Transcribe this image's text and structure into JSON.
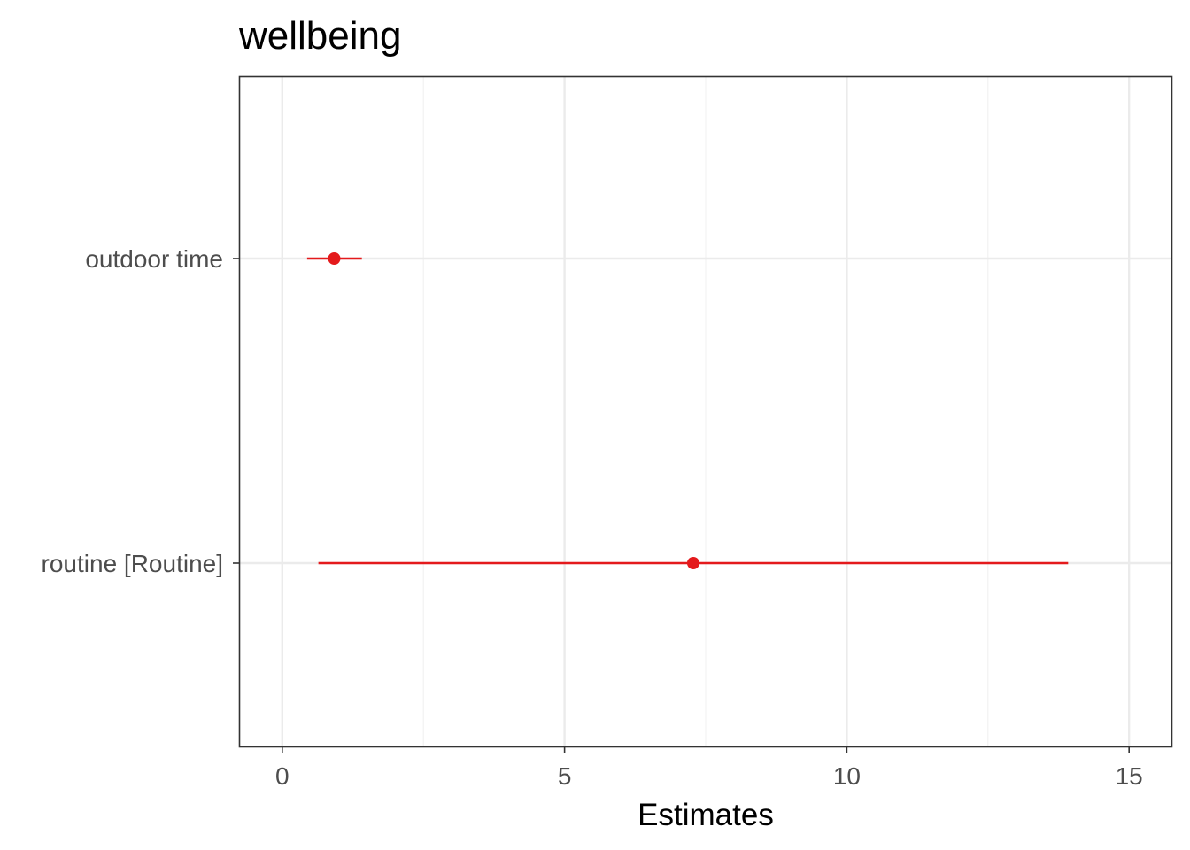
{
  "chart_data": {
    "type": "forest",
    "title": "wellbeing",
    "xlabel": "Estimates",
    "ylabel": "",
    "xlim": [
      -0.75,
      15.75
    ],
    "xticks": [
      0,
      5,
      10,
      15
    ],
    "xtick_labels": [
      "0",
      "5",
      "10",
      "15"
    ],
    "grid": true,
    "color": "#e41a1c",
    "terms": [
      {
        "label": "outdoor time",
        "estimate": 0.92,
        "ci_low": 0.44,
        "ci_high": 1.41
      },
      {
        "label": "routine [Routine]",
        "estimate": 7.28,
        "ci_low": 0.64,
        "ci_high": 13.92
      }
    ]
  }
}
